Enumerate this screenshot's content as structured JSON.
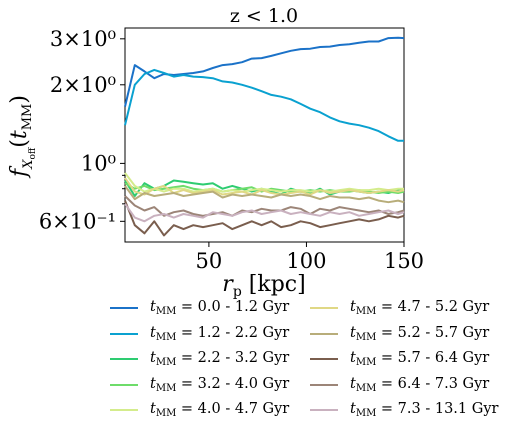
{
  "chart_data": {
    "type": "line",
    "title": "z < 1.0",
    "xlabel": "r_p [kpc]",
    "ylabel": "f_{X_off}(t_MM)",
    "yscale": "log",
    "xlim": [
      7,
      150
    ],
    "ylim": [
      0.5,
      3.3
    ],
    "xticks": [
      50,
      100,
      150
    ],
    "xtick_labels": [
      "50",
      "100",
      "150"
    ],
    "yticks": [
      0.6,
      1.0,
      2.0,
      3.0
    ],
    "ytick_labels": [
      "6×10⁻¹",
      "10⁰",
      "2×10⁰",
      "3×10⁰"
    ],
    "x": [
      7,
      12,
      17,
      22,
      27,
      32,
      37,
      42,
      47,
      52,
      57,
      62,
      67,
      72,
      77,
      82,
      87,
      92,
      97,
      102,
      107,
      112,
      117,
      122,
      127,
      132,
      137,
      142,
      147,
      150
    ],
    "series": [
      {
        "name": "t_MM = 0.0 - 1.2 Gyr",
        "color": "#1b72c8",
        "values": [
          1.65,
          2.38,
          2.25,
          2.12,
          2.2,
          2.18,
          2.2,
          2.22,
          2.25,
          2.32,
          2.38,
          2.4,
          2.44,
          2.52,
          2.53,
          2.58,
          2.64,
          2.7,
          2.74,
          2.75,
          2.79,
          2.8,
          2.84,
          2.86,
          2.9,
          2.93,
          2.93,
          3.02,
          3.03,
          3.02
        ]
      },
      {
        "name": "t_MM = 1.2 - 2.2 Gyr",
        "color": "#0aa1d0",
        "values": [
          1.4,
          2.0,
          2.2,
          2.28,
          2.22,
          2.15,
          2.18,
          2.15,
          2.14,
          2.12,
          2.06,
          2.04,
          2.0,
          1.95,
          1.89,
          1.83,
          1.8,
          1.76,
          1.69,
          1.62,
          1.57,
          1.5,
          1.45,
          1.42,
          1.4,
          1.37,
          1.33,
          1.27,
          1.22,
          1.22
        ]
      },
      {
        "name": "t_MM = 2.2 - 3.2 Gyr",
        "color": "#2ecc71",
        "values": [
          0.86,
          0.75,
          0.84,
          0.8,
          0.82,
          0.86,
          0.85,
          0.84,
          0.83,
          0.84,
          0.8,
          0.82,
          0.8,
          0.78,
          0.8,
          0.78,
          0.76,
          0.8,
          0.78,
          0.77,
          0.8,
          0.76,
          0.78,
          0.79,
          0.78,
          0.77,
          0.78,
          0.77,
          0.79,
          0.79
        ]
      },
      {
        "name": "t_MM = 3.2 - 4.0 Gyr",
        "color": "#6edc6a",
        "values": [
          0.84,
          0.8,
          0.82,
          0.79,
          0.8,
          0.81,
          0.82,
          0.8,
          0.79,
          0.8,
          0.78,
          0.79,
          0.8,
          0.81,
          0.78,
          0.8,
          0.79,
          0.78,
          0.78,
          0.79,
          0.78,
          0.79,
          0.78,
          0.78,
          0.79,
          0.78,
          0.77,
          0.78,
          0.77,
          0.78
        ]
      },
      {
        "name": "t_MM = 4.0 - 4.7 Gyr",
        "color": "#d4ec8c",
        "values": [
          0.92,
          0.82,
          0.78,
          0.8,
          0.78,
          0.8,
          0.8,
          0.78,
          0.79,
          0.8,
          0.78,
          0.79,
          0.78,
          0.79,
          0.8,
          0.79,
          0.78,
          0.79,
          0.79,
          0.78,
          0.79,
          0.78,
          0.79,
          0.8,
          0.79,
          0.79,
          0.8,
          0.79,
          0.8,
          0.8
        ]
      },
      {
        "name": "t_MM = 4.7 - 5.2 Gyr",
        "color": "#e0d885",
        "values": [
          0.88,
          0.78,
          0.76,
          0.8,
          0.82,
          0.77,
          0.79,
          0.77,
          0.78,
          0.79,
          0.76,
          0.77,
          0.78,
          0.76,
          0.79,
          0.77,
          0.76,
          0.77,
          0.78,
          0.76,
          0.79,
          0.77,
          0.78,
          0.79,
          0.78,
          0.77,
          0.78,
          0.79,
          0.78,
          0.79
        ]
      },
      {
        "name": "t_MM = 5.2 - 5.7 Gyr",
        "color": "#b8ad7a",
        "values": [
          0.82,
          0.73,
          0.77,
          0.75,
          0.76,
          0.77,
          0.75,
          0.76,
          0.77,
          0.78,
          0.74,
          0.76,
          0.75,
          0.76,
          0.75,
          0.74,
          0.76,
          0.75,
          0.76,
          0.75,
          0.73,
          0.75,
          0.74,
          0.74,
          0.73,
          0.74,
          0.72,
          0.71,
          0.72,
          0.71
        ]
      },
      {
        "name": "t_MM = 5.7 - 6.4 Gyr",
        "color": "#7a5e4e",
        "values": [
          0.72,
          0.58,
          0.54,
          0.6,
          0.53,
          0.58,
          0.56,
          0.58,
          0.57,
          0.58,
          0.59,
          0.56,
          0.58,
          0.6,
          0.58,
          0.6,
          0.57,
          0.58,
          0.6,
          0.59,
          0.57,
          0.58,
          0.59,
          0.6,
          0.61,
          0.6,
          0.61,
          0.63,
          0.62,
          0.63
        ]
      },
      {
        "name": "t_MM = 6.4 - 7.3 Gyr",
        "color": "#9c8578",
        "values": [
          0.75,
          0.69,
          0.66,
          0.68,
          0.63,
          0.65,
          0.66,
          0.64,
          0.63,
          0.64,
          0.65,
          0.63,
          0.66,
          0.65,
          0.67,
          0.66,
          0.66,
          0.68,
          0.67,
          0.64,
          0.67,
          0.66,
          0.68,
          0.67,
          0.66,
          0.65,
          0.66,
          0.64,
          0.65,
          0.66
        ]
      },
      {
        "name": "t_MM = 7.3 - 13.1 Gyr",
        "color": "#c9b1bf",
        "values": [
          0.7,
          0.62,
          0.6,
          0.63,
          0.64,
          0.62,
          0.64,
          0.63,
          0.62,
          0.65,
          0.64,
          0.63,
          0.65,
          0.66,
          0.64,
          0.65,
          0.66,
          0.64,
          0.65,
          0.64,
          0.63,
          0.65,
          0.64,
          0.65,
          0.63,
          0.64,
          0.65,
          0.66,
          0.64,
          0.65
        ]
      }
    ]
  },
  "legend": {
    "items": [
      {
        "prefix": "t",
        "sub": "MM",
        "range": " = 0.0 - 1.2 Gyr",
        "color": "#1b72c8"
      },
      {
        "prefix": "t",
        "sub": "MM",
        "range": " = 4.7 - 5.2 Gyr",
        "color": "#e0d885"
      },
      {
        "prefix": "t",
        "sub": "MM",
        "range": " = 1.2 - 2.2 Gyr",
        "color": "#0aa1d0"
      },
      {
        "prefix": "t",
        "sub": "MM",
        "range": " = 5.2 - 5.7 Gyr",
        "color": "#b8ad7a"
      },
      {
        "prefix": "t",
        "sub": "MM",
        "range": " = 2.2 - 3.2 Gyr",
        "color": "#2ecc71"
      },
      {
        "prefix": "t",
        "sub": "MM",
        "range": " = 5.7 - 6.4 Gyr",
        "color": "#7a5e4e"
      },
      {
        "prefix": "t",
        "sub": "MM",
        "range": " = 3.2 - 4.0 Gyr",
        "color": "#6edc6a"
      },
      {
        "prefix": "t",
        "sub": "MM",
        "range": " = 6.4 - 7.3 Gyr",
        "color": "#9c8578"
      },
      {
        "prefix": "t",
        "sub": "MM",
        "range": " = 4.0 - 4.7 Gyr",
        "color": "#d4ec8c"
      },
      {
        "prefix": "t",
        "sub": "MM",
        "range": " = 7.3 - 13.1 Gyr",
        "color": "#c9b1bf"
      }
    ]
  }
}
